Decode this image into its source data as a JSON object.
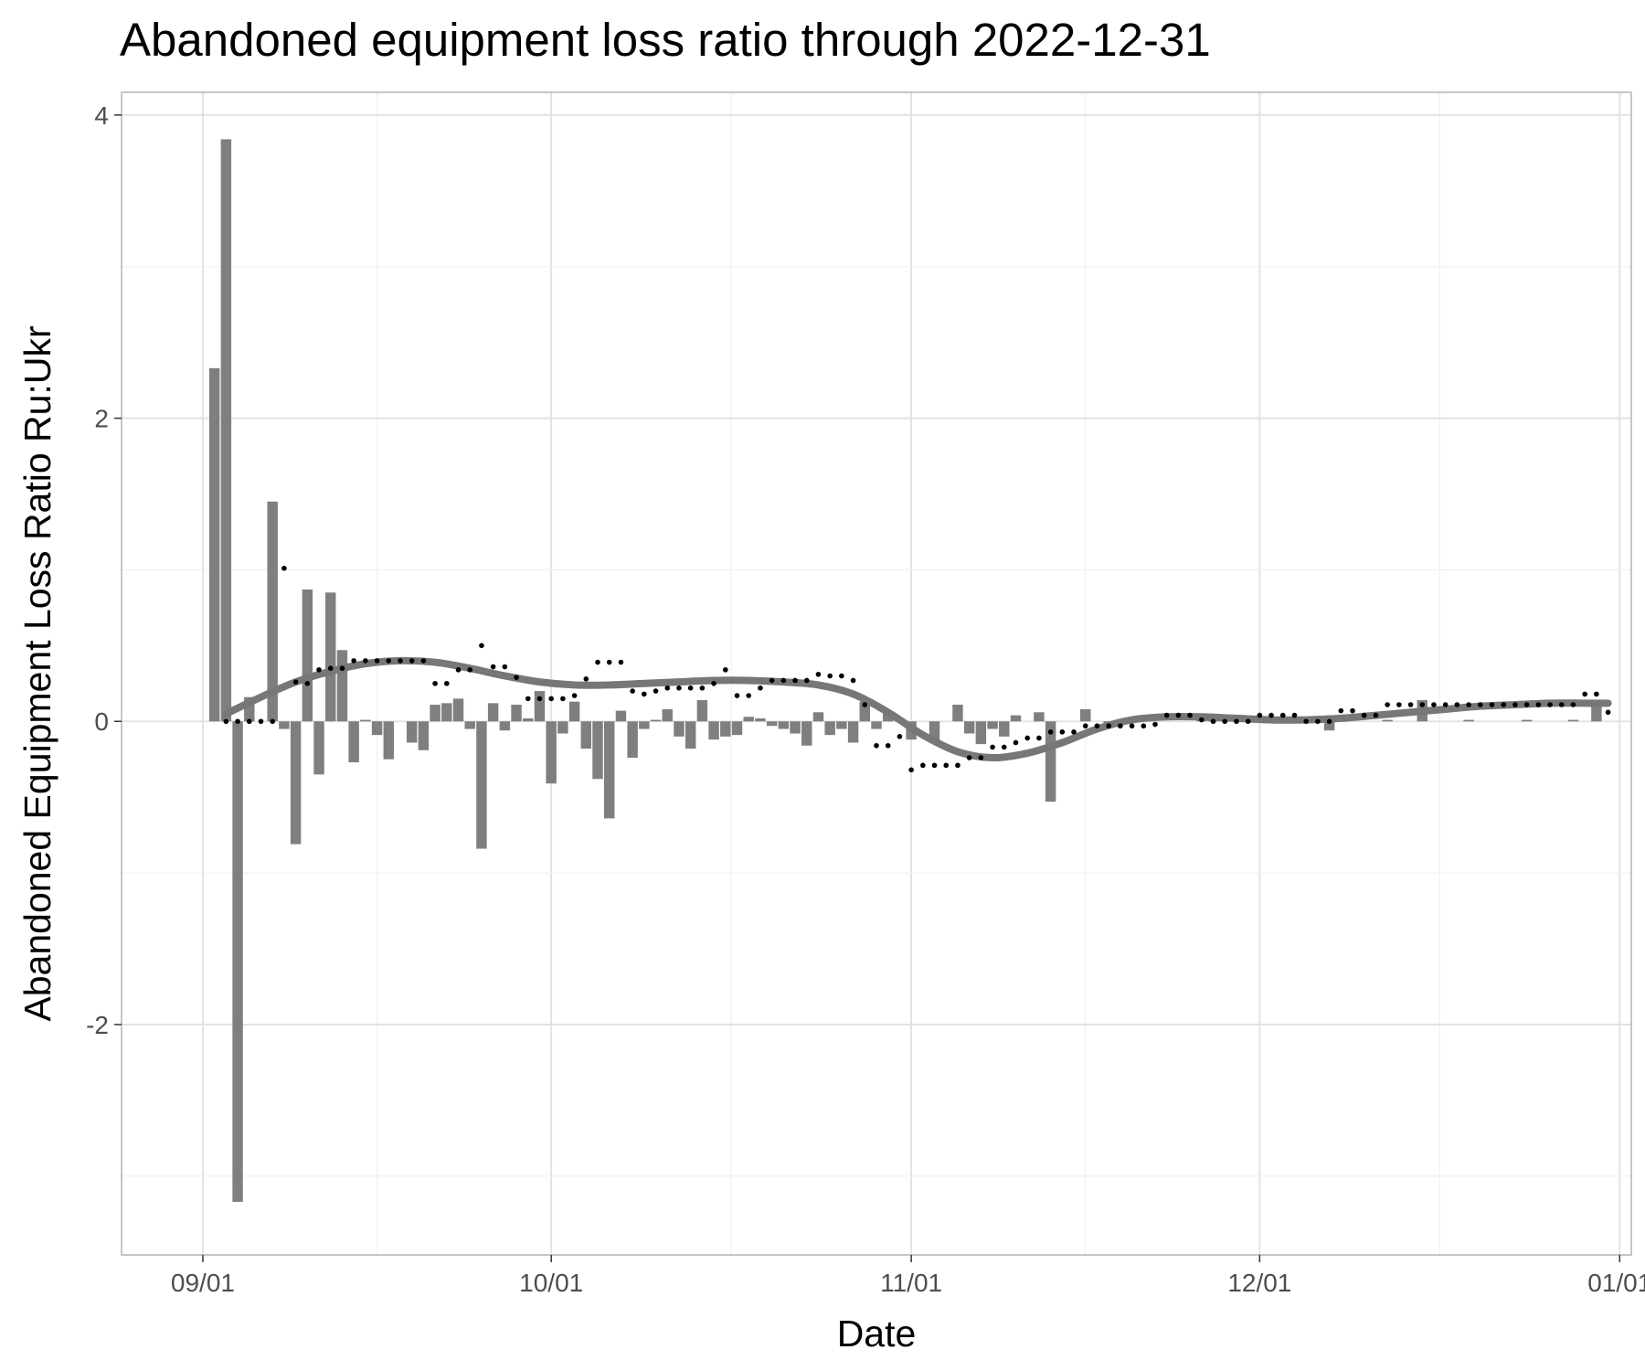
{
  "chart_data": {
    "type": "bar",
    "title": "Abandoned equipment loss ratio through 2022-12-31",
    "xlabel": "Date",
    "ylabel": "Abandoned Equipment Loss Ratio Ru:Ukr",
    "x_ticks": [
      {
        "date": "2022-09-01",
        "label": "09/01"
      },
      {
        "date": "2022-10-01",
        "label": "10/01"
      },
      {
        "date": "2022-11-01",
        "label": "11/01"
      },
      {
        "date": "2022-12-01",
        "label": "12/01"
      },
      {
        "date": "2023-01-01",
        "label": "01/01"
      }
    ],
    "y_ticks": [
      {
        "value": 4,
        "label": "4"
      },
      {
        "value": 2,
        "label": "2"
      },
      {
        "value": 0,
        "label": "0"
      },
      {
        "value": -2,
        "label": "-2"
      }
    ],
    "xlim": [
      "2022-08-25",
      "2023-01-02"
    ],
    "ylim": [
      -3.52,
      4.15
    ],
    "grid": true,
    "bar_color": "#7f7f7f",
    "point_color": "#000000",
    "smooth_color": "#777777",
    "series": [
      {
        "kind": "bar",
        "dates": [
          "2022-09-02",
          "2022-09-03",
          "2022-09-04",
          "2022-09-05",
          "2022-09-07",
          "2022-09-08",
          "2022-09-09",
          "2022-09-10",
          "2022-09-11",
          "2022-09-12",
          "2022-09-13",
          "2022-09-14",
          "2022-09-15",
          "2022-09-16",
          "2022-09-17",
          "2022-09-19",
          "2022-09-20",
          "2022-09-21",
          "2022-09-22",
          "2022-09-23",
          "2022-09-24",
          "2022-09-25",
          "2022-09-26",
          "2022-09-27",
          "2022-09-28",
          "2022-09-29",
          "2022-09-30",
          "2022-10-01",
          "2022-10-02",
          "2022-10-03",
          "2022-10-04",
          "2022-10-05",
          "2022-10-06",
          "2022-10-07",
          "2022-10-08",
          "2022-10-09",
          "2022-10-10",
          "2022-10-11",
          "2022-10-12",
          "2022-10-13",
          "2022-10-14",
          "2022-10-15",
          "2022-10-16",
          "2022-10-17",
          "2022-10-18",
          "2022-10-19",
          "2022-10-20",
          "2022-10-21",
          "2022-10-22",
          "2022-10-23",
          "2022-10-24",
          "2022-10-25",
          "2022-10-26",
          "2022-10-27",
          "2022-10-28",
          "2022-10-29",
          "2022-10-30",
          "2022-10-31",
          "2022-11-01",
          "2022-11-03",
          "2022-11-05",
          "2022-11-06",
          "2022-11-07",
          "2022-11-08",
          "2022-11-09",
          "2022-11-10",
          "2022-11-12",
          "2022-11-13",
          "2022-11-16",
          "2022-11-18",
          "2022-11-26",
          "2022-11-27",
          "2022-11-28",
          "2022-12-03",
          "2022-12-07",
          "2022-12-08",
          "2022-12-12",
          "2022-12-15",
          "2022-12-19",
          "2022-12-24",
          "2022-12-28",
          "2022-12-30"
        ],
        "values": [
          2.33,
          3.84,
          -3.17,
          0.16,
          1.45,
          -0.05,
          -0.81,
          0.87,
          -0.35,
          0.85,
          0.47,
          -0.27,
          0.01,
          -0.09,
          -0.25,
          -0.14,
          -0.19,
          0.11,
          0.12,
          0.15,
          -0.05,
          -0.84,
          0.12,
          -0.06,
          0.11,
          0.02,
          0.2,
          -0.41,
          -0.08,
          0.13,
          -0.18,
          -0.38,
          -0.64,
          0.07,
          -0.24,
          -0.05,
          0.01,
          0.08,
          -0.1,
          -0.18,
          0.14,
          -0.12,
          -0.1,
          -0.09,
          0.03,
          0.02,
          -0.03,
          -0.05,
          -0.08,
          -0.16,
          0.06,
          -0.09,
          -0.05,
          -0.14,
          0.13,
          -0.05,
          0.05,
          0.02,
          -0.12,
          -0.14,
          0.11,
          -0.08,
          -0.15,
          -0.05,
          -0.1,
          0.04,
          0.06,
          -0.53,
          0.08,
          -0.02,
          0.03,
          0.01,
          0.02,
          0.01,
          -0.06,
          0.01,
          0.01,
          0.14,
          0.01,
          0.01,
          0.01,
          0.14
        ]
      },
      {
        "kind": "points",
        "dates": [
          "2022-09-03",
          "2022-09-04",
          "2022-09-05",
          "2022-09-06",
          "2022-09-07",
          "2022-09-08",
          "2022-09-09",
          "2022-09-10",
          "2022-09-11",
          "2022-09-12",
          "2022-09-13",
          "2022-09-14",
          "2022-09-15",
          "2022-09-16",
          "2022-09-17",
          "2022-09-18",
          "2022-09-19",
          "2022-09-20",
          "2022-09-21",
          "2022-09-22",
          "2022-09-23",
          "2022-09-24",
          "2022-09-25",
          "2022-09-26",
          "2022-09-27",
          "2022-09-28",
          "2022-09-29",
          "2022-09-30",
          "2022-10-01",
          "2022-10-02",
          "2022-10-03",
          "2022-10-04",
          "2022-10-05",
          "2022-10-06",
          "2022-10-07",
          "2022-10-08",
          "2022-10-09",
          "2022-10-10",
          "2022-10-11",
          "2022-10-12",
          "2022-10-13",
          "2022-10-14",
          "2022-10-15",
          "2022-10-16",
          "2022-10-17",
          "2022-10-18",
          "2022-10-19",
          "2022-10-20",
          "2022-10-21",
          "2022-10-22",
          "2022-10-23",
          "2022-10-24",
          "2022-10-25",
          "2022-10-26",
          "2022-10-27",
          "2022-10-28",
          "2022-10-29",
          "2022-10-30",
          "2022-10-31",
          "2022-11-01",
          "2022-11-02",
          "2022-11-03",
          "2022-11-04",
          "2022-11-05",
          "2022-11-06",
          "2022-11-07",
          "2022-11-08",
          "2022-11-09",
          "2022-11-10",
          "2022-11-11",
          "2022-11-12",
          "2022-11-13",
          "2022-11-14",
          "2022-11-15",
          "2022-11-16",
          "2022-11-17",
          "2022-11-18",
          "2022-11-19",
          "2022-11-20",
          "2022-11-21",
          "2022-11-22",
          "2022-11-23",
          "2022-11-24",
          "2022-11-25",
          "2022-11-26",
          "2022-11-27",
          "2022-11-28",
          "2022-11-29",
          "2022-11-30",
          "2022-12-01",
          "2022-12-02",
          "2022-12-03",
          "2022-12-04",
          "2022-12-05",
          "2022-12-06",
          "2022-12-07",
          "2022-12-08",
          "2022-12-09",
          "2022-12-10",
          "2022-12-11",
          "2022-12-12",
          "2022-12-13",
          "2022-12-14",
          "2022-12-15",
          "2022-12-16",
          "2022-12-17",
          "2022-12-18",
          "2022-12-19",
          "2022-12-20",
          "2022-12-21",
          "2022-12-22",
          "2022-12-23",
          "2022-12-24",
          "2022-12-25",
          "2022-12-26",
          "2022-12-27",
          "2022-12-28",
          "2022-12-29",
          "2022-12-30",
          "2022-12-31"
        ],
        "values": [
          0,
          0,
          0,
          0,
          0,
          1.01,
          0.26,
          0.25,
          0.34,
          0.35,
          0.35,
          0.4,
          0.4,
          0.4,
          0.4,
          0.4,
          0.4,
          0.4,
          0.25,
          0.25,
          0.34,
          0.34,
          0.5,
          0.36,
          0.36,
          0.29,
          0.15,
          0.15,
          0.15,
          0.15,
          0.17,
          0.28,
          0.39,
          0.39,
          0.39,
          0.2,
          0.18,
          0.2,
          0.22,
          0.22,
          0.22,
          0.22,
          0.25,
          0.34,
          0.17,
          0.17,
          0.22,
          0.27,
          0.27,
          0.27,
          0.27,
          0.31,
          0.3,
          0.3,
          0.27,
          0.11,
          -0.16,
          -0.16,
          -0.1,
          -0.32,
          -0.29,
          -0.29,
          -0.29,
          -0.29,
          -0.24,
          -0.24,
          -0.17,
          -0.17,
          -0.14,
          -0.11,
          -0.11,
          -0.07,
          -0.07,
          -0.07,
          -0.03,
          -0.03,
          -0.03,
          -0.03,
          -0.03,
          -0.03,
          -0.02,
          0.04,
          0.04,
          0.04,
          0.01,
          0,
          0,
          0,
          0,
          0.04,
          0.04,
          0.04,
          0.04,
          0,
          0,
          0,
          0.07,
          0.07,
          0.04,
          0.04,
          0.11,
          0.11,
          0.11,
          0.11,
          0.11,
          0.11,
          0.11,
          0.11,
          0.11,
          0.11,
          0.11,
          0.11,
          0.11,
          0.11,
          0.11,
          0.11,
          0.11,
          0.18,
          0.18,
          0.06
        ]
      },
      {
        "kind": "smooth",
        "dates": [
          "2022-09-03",
          "2022-09-06",
          "2022-09-09",
          "2022-09-12",
          "2022-09-15",
          "2022-09-18",
          "2022-09-21",
          "2022-09-24",
          "2022-09-27",
          "2022-09-30",
          "2022-10-03",
          "2022-10-06",
          "2022-10-09",
          "2022-10-12",
          "2022-10-15",
          "2022-10-18",
          "2022-10-21",
          "2022-10-24",
          "2022-10-27",
          "2022-10-30",
          "2022-11-02",
          "2022-11-05",
          "2022-11-08",
          "2022-11-11",
          "2022-11-14",
          "2022-11-17",
          "2022-11-20",
          "2022-11-23",
          "2022-11-26",
          "2022-11-29",
          "2022-12-02",
          "2022-12-05",
          "2022-12-08",
          "2022-12-11",
          "2022-12-14",
          "2022-12-17",
          "2022-12-20",
          "2022-12-23",
          "2022-12-26",
          "2022-12-29",
          "2022-12-31"
        ],
        "values": [
          0.05,
          0.16,
          0.26,
          0.33,
          0.38,
          0.4,
          0.39,
          0.35,
          0.3,
          0.26,
          0.24,
          0.24,
          0.25,
          0.26,
          0.27,
          0.27,
          0.26,
          0.24,
          0.18,
          0.06,
          -0.09,
          -0.2,
          -0.24,
          -0.21,
          -0.14,
          -0.05,
          0.01,
          0.03,
          0.03,
          0.02,
          0.01,
          0.01,
          0.02,
          0.04,
          0.06,
          0.08,
          0.1,
          0.11,
          0.12,
          0.12,
          0.12
        ]
      }
    ]
  }
}
